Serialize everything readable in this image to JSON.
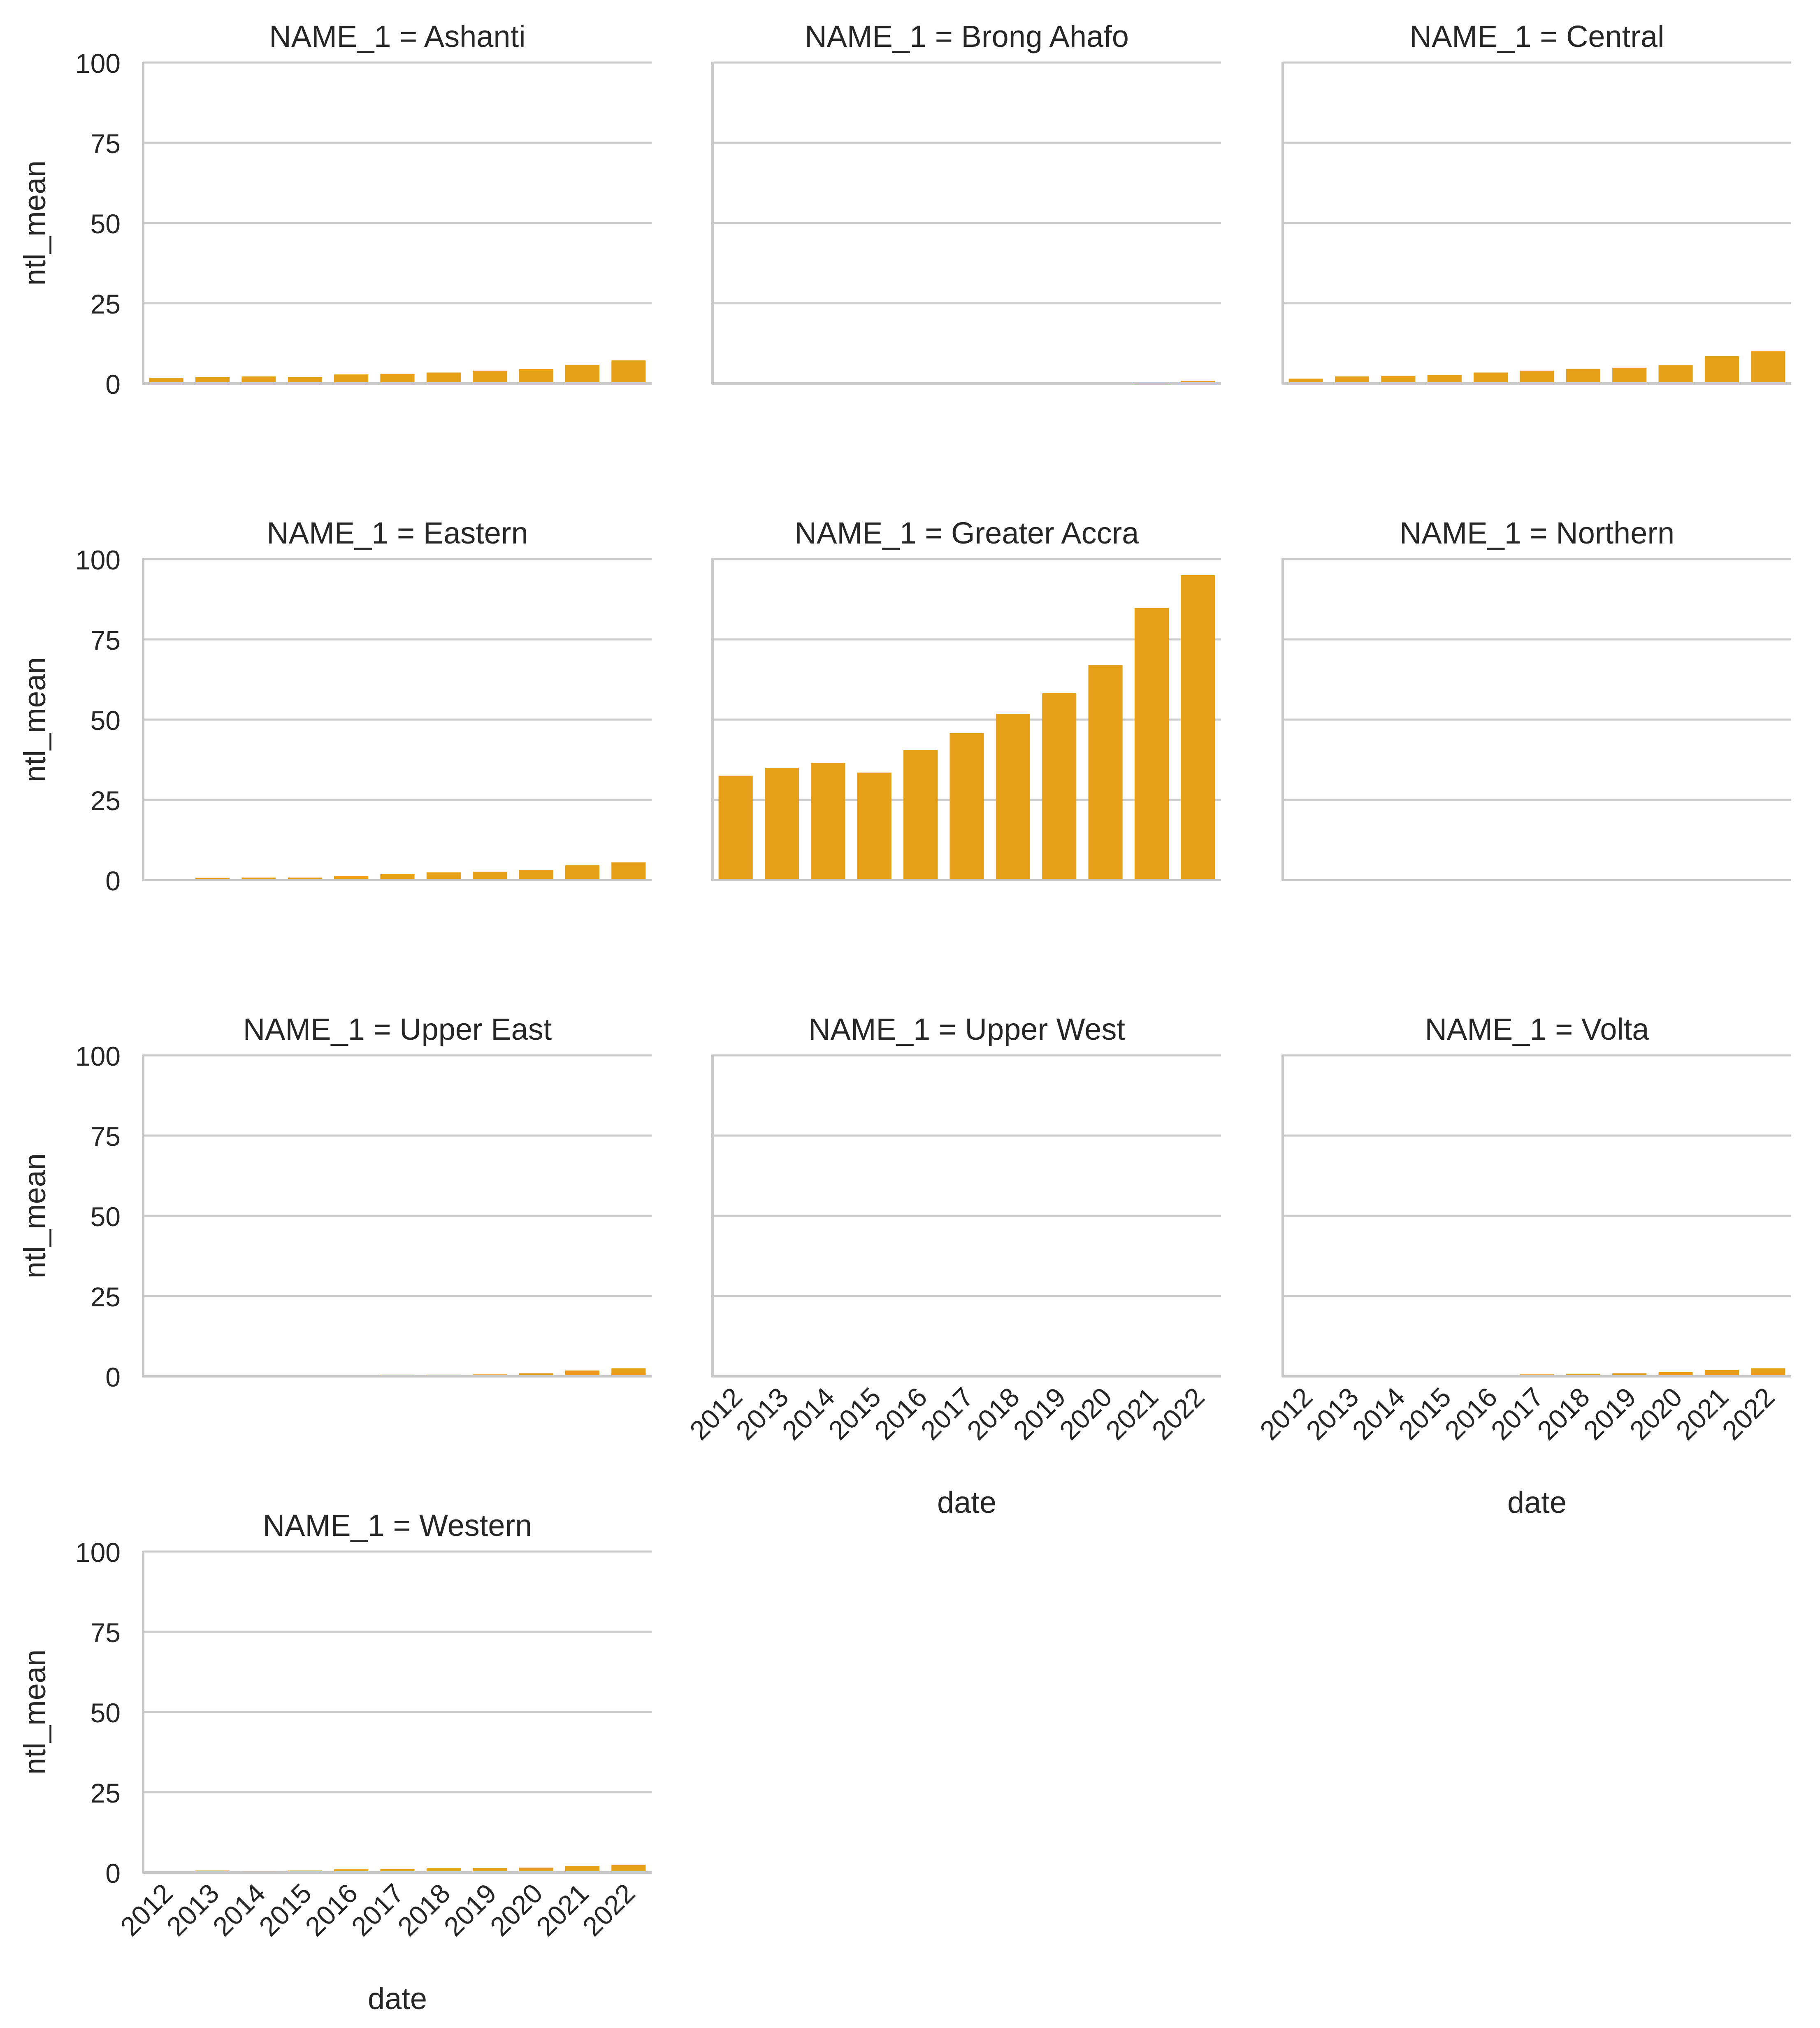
{
  "chart_data": {
    "type": "bar",
    "layout": "facet-grid",
    "facet_columns": 3,
    "facet_label_prefix": "NAME_1 = ",
    "xlabel": "date",
    "ylabel": "ntl_mean",
    "ylim": [
      0,
      100
    ],
    "yticks": [
      0,
      25,
      50,
      75,
      100
    ],
    "grid": "horizontal",
    "categories": [
      "2012",
      "2013",
      "2014",
      "2015",
      "2016",
      "2017",
      "2018",
      "2019",
      "2020",
      "2021",
      "2022"
    ],
    "bar_color": "#e69f18",
    "facets": [
      {
        "name": "Ashanti",
        "values": [
          1.8,
          2.0,
          2.2,
          2.0,
          2.8,
          3.0,
          3.4,
          4.0,
          4.5,
          5.8,
          7.2
        ]
      },
      {
        "name": "Brong Ahafo",
        "values": [
          0.0,
          0.0,
          0.0,
          0.0,
          0.0,
          0.0,
          0.0,
          0.0,
          0.1,
          0.5,
          0.8
        ]
      },
      {
        "name": "Central",
        "values": [
          1.5,
          2.2,
          2.4,
          2.6,
          3.4,
          4.0,
          4.6,
          4.9,
          5.7,
          8.5,
          10.0
        ]
      },
      {
        "name": "Eastern",
        "values": [
          0.2,
          0.7,
          0.8,
          0.8,
          1.3,
          1.8,
          2.4,
          2.6,
          3.2,
          4.6,
          5.5
        ]
      },
      {
        "name": "Greater Accra",
        "values": [
          32.5,
          35.0,
          36.5,
          33.5,
          40.5,
          45.8,
          51.8,
          58.2,
          67.0,
          84.8,
          95.0
        ]
      },
      {
        "name": "Northern",
        "values": [
          0.0,
          0.0,
          0.0,
          0.0,
          0.0,
          0.0,
          0.0,
          0.0,
          0.0,
          0.0,
          0.0
        ]
      },
      {
        "name": "Upper East",
        "values": [
          0.0,
          0.0,
          0.0,
          0.0,
          0.1,
          0.5,
          0.5,
          0.6,
          0.9,
          1.8,
          2.5
        ]
      },
      {
        "name": "Upper West",
        "values": [
          0.0,
          0.0,
          0.0,
          0.0,
          0.0,
          0.0,
          0.0,
          0.0,
          0.0,
          0.0,
          0.0
        ]
      },
      {
        "name": "Volta",
        "values": [
          0.0,
          0.0,
          0.0,
          0.0,
          0.3,
          0.6,
          0.8,
          0.9,
          1.3,
          2.0,
          2.5
        ]
      },
      {
        "name": "Western",
        "values": [
          0.2,
          0.6,
          0.4,
          0.6,
          1.0,
          1.1,
          1.3,
          1.4,
          1.5,
          2.0,
          2.4
        ]
      }
    ]
  }
}
